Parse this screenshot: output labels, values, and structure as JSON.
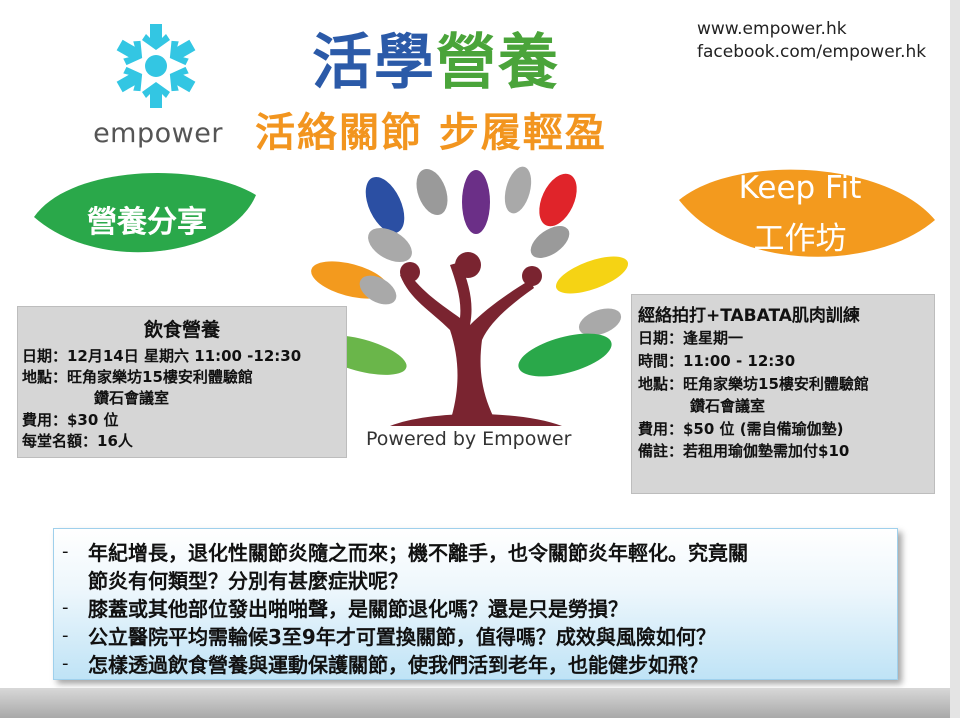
{
  "header": {
    "title_part_a": "活學",
    "title_part_b": "營養",
    "subtitle": "活絡關節 步履輕盈",
    "website": "www.empower.hk",
    "facebook": "facebook.com/empower.hk"
  },
  "logo": {
    "text": "empower",
    "icon": "snowflake-logo-icon"
  },
  "badges": {
    "left": "營養分享",
    "right_line1": "Keep Fit",
    "right_line2": "工作坊"
  },
  "tree": {
    "powered_by": "Powered by Empower",
    "icon": "tree-icon"
  },
  "nutrition_box": {
    "title": "飲食營養",
    "lines": [
      "日期：12月14日  星期六   11:00 -12:30",
      "地點：旺角家樂坊15樓安利體驗館",
      "鑽石會議室",
      "費用：$30 位",
      "每堂名額：16人"
    ]
  },
  "fitness_box": {
    "title": "經絡拍打+TABATA肌肉訓練",
    "lines": [
      "日期：逢星期一",
      "時間：11:00 - 12:30",
      "地點：旺角家樂坊15樓安利體驗館",
      "鑽石會議室",
      "費用：$50 位 (需自備瑜伽墊)",
      "備註：若租用瑜伽墊需加付$10"
    ]
  },
  "questions": {
    "dash": "-",
    "items": [
      "年紀增長，退化性關節炎隨之而來；機不離手，也令關節炎年輕化。究竟關",
      "節炎有何類型？分別有甚麼症狀呢？",
      "膝蓋或其他部位發出啪啪聲，是關節退化嗎？還是只是勞損？",
      "公立醫院平均需輪候3至9年才可置換關節，值得嗎？成效與風險如何？",
      "怎樣透過飲食營養與運動保護關節，使我們活到老年，也能健步如飛？"
    ]
  },
  "colors": {
    "title_blue": "#2b5aa8",
    "title_green": "#4aa43a",
    "subtitle_orange": "#f2951f",
    "leaf_green": "#2aa84a",
    "leaf_orange": "#f39a1e",
    "tree_trunk": "#7a2430",
    "logo_cyan": "#33c6e3"
  }
}
